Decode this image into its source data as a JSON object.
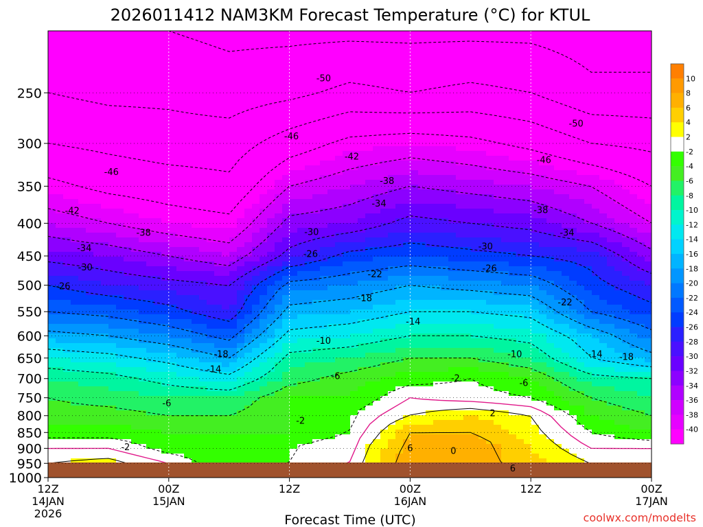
{
  "title": "2026011412 NAM3KM Forecast Temperature (°C) for KTUL",
  "credit": "coolwx.com/modelts",
  "colors": {
    "credit": "#e8322b",
    "contour": "#000000",
    "freezing_contour": "#e0188a",
    "ground": "#a0522d"
  },
  "chart_data": {
    "type": "heatmap",
    "title": "2026011412 NAM3KM Forecast Temperature (°C) for KTUL",
    "xlabel": "Forecast Time (UTC)",
    "ylabel": "",
    "x_ticks": [
      {
        "label": [
          "12Z",
          "14JAN",
          "2026"
        ],
        "hour": 0
      },
      {
        "label": [
          "00Z",
          "15JAN"
        ],
        "hour": 12
      },
      {
        "label": [
          "12Z"
        ],
        "hour": 24
      },
      {
        "label": [
          "00Z",
          "16JAN"
        ],
        "hour": 36
      },
      {
        "label": [
          "12Z"
        ],
        "hour": 48
      },
      {
        "label": [
          "00Z",
          "17JAN"
        ],
        "hour": 60
      }
    ],
    "xlim": [
      0,
      60
    ],
    "y_ticks": [
      250,
      300,
      350,
      400,
      450,
      500,
      550,
      600,
      650,
      700,
      750,
      800,
      850,
      900,
      950,
      1000
    ],
    "y_scale": "log-pressure",
    "ylim": [
      1000,
      200
    ],
    "grid": true,
    "colorbar": {
      "labels": [
        10,
        8,
        6,
        4,
        2,
        -2,
        -4,
        -6,
        -8,
        -10,
        -12,
        -14,
        -16,
        -18,
        -20,
        -22,
        -24,
        -26,
        -28,
        -30,
        -32,
        -34,
        -36,
        -38,
        -40
      ],
      "bins": [
        {
          "lo": 10,
          "hi": 12,
          "color": "#ff7f00"
        },
        {
          "lo": 8,
          "hi": 10,
          "color": "#ff9a00"
        },
        {
          "lo": 6,
          "hi": 8,
          "color": "#ffb000"
        },
        {
          "lo": 4,
          "hi": 6,
          "color": "#ffcf00"
        },
        {
          "lo": 2,
          "hi": 4,
          "color": "#ffff00"
        },
        {
          "lo": -2,
          "hi": 2,
          "color": "#ffffff"
        },
        {
          "lo": -4,
          "hi": -2,
          "color": "#33ff00"
        },
        {
          "lo": -6,
          "hi": -4,
          "color": "#44ee22"
        },
        {
          "lo": -8,
          "hi": -6,
          "color": "#22f266"
        },
        {
          "lo": -10,
          "hi": -8,
          "color": "#00f5a0"
        },
        {
          "lo": -12,
          "hi": -10,
          "color": "#00f5cd"
        },
        {
          "lo": -14,
          "hi": -12,
          "color": "#00e8f0"
        },
        {
          "lo": -16,
          "hi": -14,
          "color": "#00d2ff"
        },
        {
          "lo": -18,
          "hi": -16,
          "color": "#00b4ff"
        },
        {
          "lo": -20,
          "hi": -18,
          "color": "#0096ff"
        },
        {
          "lo": -22,
          "hi": -20,
          "color": "#0078ff"
        },
        {
          "lo": -24,
          "hi": -22,
          "color": "#005aff"
        },
        {
          "lo": -26,
          "hi": -24,
          "color": "#003cff"
        },
        {
          "lo": -28,
          "hi": -26,
          "color": "#2a20ff"
        },
        {
          "lo": -30,
          "hi": -28,
          "color": "#4a10ff"
        },
        {
          "lo": -32,
          "hi": -30,
          "color": "#6a00ff"
        },
        {
          "lo": -34,
          "hi": -32,
          "color": "#8c00ff"
        },
        {
          "lo": -36,
          "hi": -34,
          "color": "#b000ff"
        },
        {
          "lo": -38,
          "hi": -36,
          "color": "#d000ff"
        },
        {
          "lo": -40,
          "hi": -38,
          "color": "#e600ff"
        },
        {
          "lo": -99,
          "hi": -40,
          "color": "#ff00ff"
        }
      ]
    },
    "profile_pressures": [
      1000,
      950,
      900,
      850,
      800,
      750,
      700,
      650,
      600,
      550,
      500,
      450,
      400,
      350,
      300,
      250,
      200
    ],
    "profile_hours": [
      0,
      6,
      12,
      18,
      24,
      30,
      36,
      42,
      48,
      54,
      60
    ],
    "temperature_profiles": [
      [
        4,
        2,
        0,
        -3,
        -5,
        -6,
        -8,
        -12,
        -17,
        -22,
        -26,
        -31,
        -36,
        -41,
        -46,
        -50,
        -54
      ],
      [
        5,
        3,
        0,
        -3,
        -5,
        -7,
        -9,
        -13,
        -18,
        -23,
        -28,
        -32,
        -38,
        -43,
        -47,
        -51,
        -54
      ],
      [
        2,
        0,
        -3,
        -4,
        -6,
        -8,
        -11,
        -15,
        -20,
        -25,
        -29,
        -34,
        -40,
        -44,
        -48,
        -51,
        -54
      ],
      [
        0,
        -4,
        -4,
        -4,
        -6,
        -8,
        -13,
        -18,
        -23,
        -28,
        -30,
        -36,
        -41,
        -45,
        -48,
        -52,
        -55
      ],
      [
        -1,
        -2,
        -2,
        -4,
        -4,
        -4,
        -7,
        -9,
        -13,
        -17,
        -21,
        -29,
        -33,
        -38,
        -44,
        -51,
        -55
      ],
      [
        2,
        0,
        0,
        -2,
        -2,
        -4,
        -5,
        -8,
        -12,
        -16,
        -20,
        -25,
        -32,
        -36,
        -41,
        -49,
        -55
      ],
      [
        8,
        8,
        7,
        6,
        2,
        0,
        -3,
        -6,
        -10,
        -14,
        -18,
        -24,
        -29,
        -34,
        -40,
        -50,
        -55
      ],
      [
        8,
        7,
        8,
        6,
        4,
        -1,
        -2,
        -6,
        -10,
        -14,
        -19,
        -25,
        -30,
        -35,
        -41,
        -49,
        -55
      ],
      [
        6,
        5,
        4,
        3,
        2,
        -2,
        -4,
        -8,
        -11,
        -15,
        -20,
        -26,
        -31,
        -36,
        -43,
        -50,
        -55
      ],
      [
        3,
        2,
        0,
        -2,
        -4,
        -6,
        -9,
        -14,
        -16,
        -22,
        -25,
        -27,
        -34,
        -38,
        -46,
        -53,
        -56
      ],
      [
        4,
        2,
        0,
        -4,
        -6,
        -8,
        -10,
        -17,
        -21,
        -25,
        -28,
        -33,
        -38,
        -42,
        -47,
        -53,
        -56
      ]
    ],
    "contour_labels": [
      {
        "text": "-50",
        "hour": 27.4,
        "p": 237
      },
      {
        "text": "-50",
        "hour": 52.5,
        "p": 279
      },
      {
        "text": "-46",
        "hour": 24.2,
        "p": 292
      },
      {
        "text": "-46",
        "hour": 6.3,
        "p": 332
      },
      {
        "text": "-46",
        "hour": 49.3,
        "p": 318
      },
      {
        "text": "-42",
        "hour": 30.2,
        "p": 314
      },
      {
        "text": "-42",
        "hour": 2.4,
        "p": 382
      },
      {
        "text": "-38",
        "hour": 33.7,
        "p": 343
      },
      {
        "text": "-38",
        "hour": 9.5,
        "p": 413
      },
      {
        "text": "-38",
        "hour": 49.0,
        "p": 381
      },
      {
        "text": "-34",
        "hour": 32.9,
        "p": 372
      },
      {
        "text": "-34",
        "hour": 3.6,
        "p": 437
      },
      {
        "text": "-34",
        "hour": 51.6,
        "p": 413
      },
      {
        "text": "-30",
        "hour": 26.2,
        "p": 412
      },
      {
        "text": "-30",
        "hour": 3.7,
        "p": 468
      },
      {
        "text": "-30",
        "hour": 43.5,
        "p": 434
      },
      {
        "text": "-26",
        "hour": 26.1,
        "p": 446
      },
      {
        "text": "-26",
        "hour": 1.5,
        "p": 501
      },
      {
        "text": "-26",
        "hour": 43.9,
        "p": 470
      },
      {
        "text": "-22",
        "hour": 32.5,
        "p": 480
      },
      {
        "text": "-22",
        "hour": 51.4,
        "p": 531
      },
      {
        "text": "-18",
        "hour": 31.5,
        "p": 523
      },
      {
        "text": "-18",
        "hour": 17.2,
        "p": 640
      },
      {
        "text": "-18",
        "hour": 57.5,
        "p": 646
      },
      {
        "text": "-14",
        "hour": 36.3,
        "p": 569
      },
      {
        "text": "-14",
        "hour": 16.5,
        "p": 676
      },
      {
        "text": "-14",
        "hour": 54.4,
        "p": 640
      },
      {
        "text": "-10",
        "hour": 27.4,
        "p": 610
      },
      {
        "text": "-10",
        "hour": 46.4,
        "p": 640
      },
      {
        "text": "-6",
        "hour": 28.6,
        "p": 693
      },
      {
        "text": "-6",
        "hour": 47.3,
        "p": 710
      },
      {
        "text": "-6",
        "hour": 11.8,
        "p": 764
      },
      {
        "text": "-2",
        "hour": 40.5,
        "p": 698
      },
      {
        "text": "-2",
        "hour": 25.1,
        "p": 813
      },
      {
        "text": "-2",
        "hour": 7.7,
        "p": 895
      },
      {
        "text": "2",
        "hour": 44.2,
        "p": 792
      },
      {
        "text": "6",
        "hour": 36.0,
        "p": 898
      },
      {
        "text": "0",
        "hour": 40.3,
        "p": 907
      },
      {
        "text": "6",
        "hour": 46.2,
        "p": 966
      }
    ]
  }
}
